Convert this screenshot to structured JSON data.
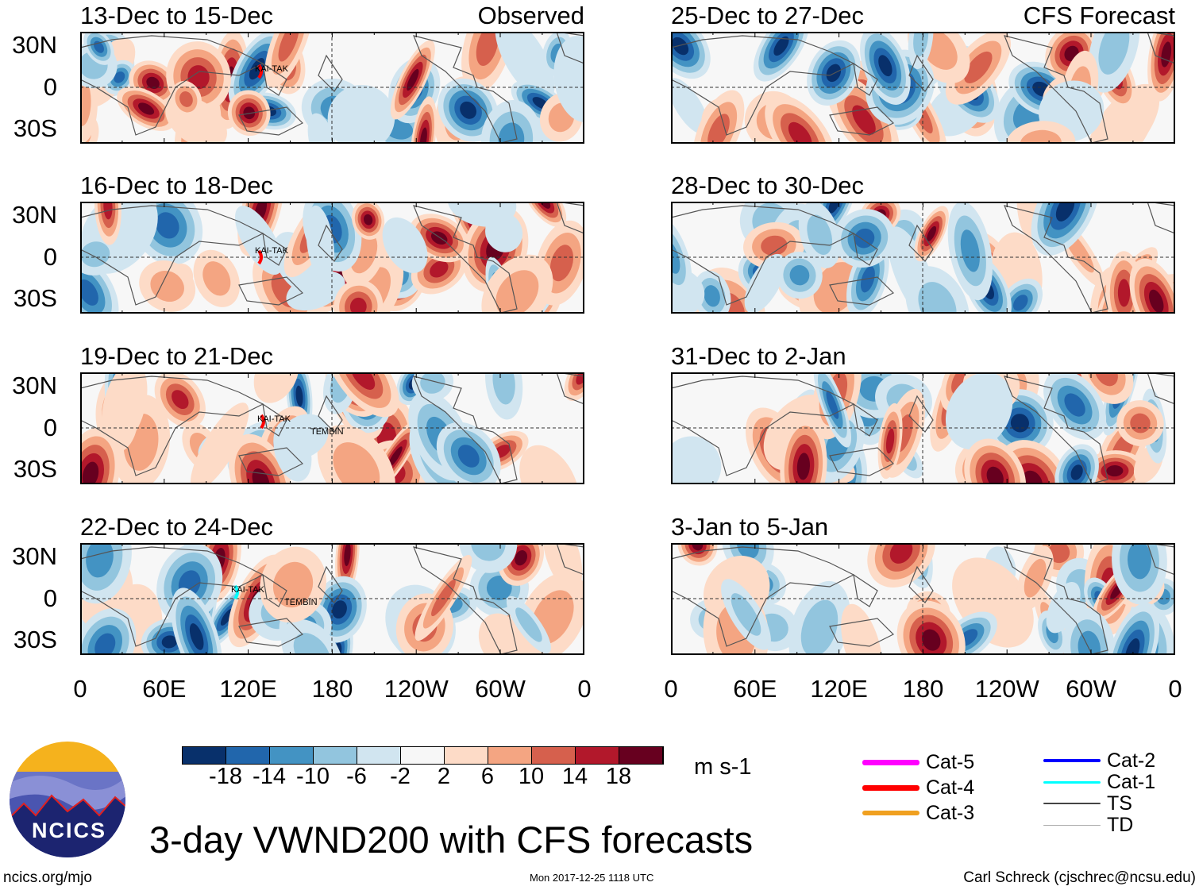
{
  "domain_title": "3-day VWND200 with CFS forecasts",
  "units": "m s-1",
  "left_header": "Observed",
  "right_header": "CFS Forecast",
  "panels_left": [
    {
      "title": "13-Dec to 15-Dec",
      "storms": [
        "KAI-TAK"
      ]
    },
    {
      "title": "16-Dec to 18-Dec",
      "storms": [
        "KAI-TAK"
      ]
    },
    {
      "title": "19-Dec to 21-Dec",
      "storms": [
        "KAI-TAK",
        "TEMBIN"
      ]
    },
    {
      "title": "22-Dec to 24-Dec",
      "storms": [
        "KAI-TAK",
        "TEMBIN"
      ]
    }
  ],
  "panels_right": [
    {
      "title": "25-Dec to 27-Dec"
    },
    {
      "title": "28-Dec to 30-Dec"
    },
    {
      "title": "31-Dec to 2-Jan"
    },
    {
      "title": "3-Jan to 5-Jan"
    }
  ],
  "lat_labels": [
    "30N",
    "0",
    "30S"
  ],
  "lon_labels": [
    "0",
    "60E",
    "120E",
    "180",
    "120W",
    "60W",
    "0"
  ],
  "colorbar": {
    "labels": [
      "-18",
      "-14",
      "-10",
      "-6",
      "-2",
      "2",
      "6",
      "10",
      "14",
      "18"
    ],
    "colors": [
      "#08306b",
      "#2166ac",
      "#4393c3",
      "#92c5de",
      "#d1e5f0",
      "#f7f7f7",
      "#fddbc7",
      "#f4a582",
      "#d6604d",
      "#b2182b",
      "#67001f"
    ]
  },
  "track_legend": [
    {
      "label": "Cat-5",
      "color": "#ff00ff"
    },
    {
      "label": "Cat-4",
      "color": "#ff0000"
    },
    {
      "label": "Cat-3",
      "color": "#f0a020"
    },
    {
      "label": "Cat-2",
      "color": "#0000ff"
    },
    {
      "label": "Cat-1",
      "color": "#00ffff"
    },
    {
      "label": "TS",
      "color": "#444444"
    },
    {
      "label": "TD",
      "color": "#aaaaaa"
    }
  ],
  "logo_text": "NCICS",
  "footer": {
    "left": "ncics.org/mjo",
    "center": "Mon 2017-12-25 1118 UTC",
    "right": "Carl Schreck (cjschrec@ncsu.edu)"
  }
}
